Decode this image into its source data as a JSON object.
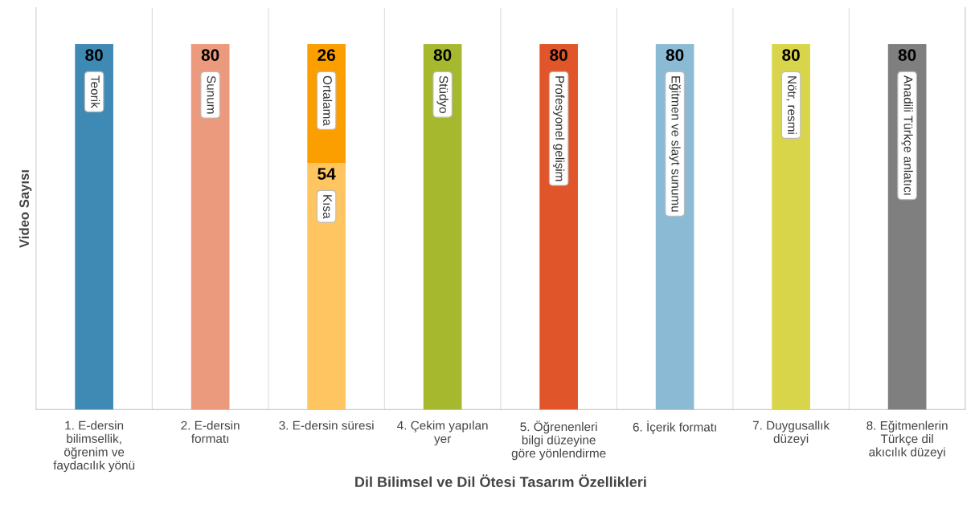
{
  "chart_data": {
    "type": "bar",
    "stacked": true,
    "data_labels": true,
    "grid": "x",
    "xlabel": "Dil Bilimsel ve Dil Ötesi Tasarım Özellikleri",
    "ylabel": "Video Sayısı",
    "categories": [
      "1. E-dersin bilimsellik, öğrenim ve faydacılık yönü",
      "2. E-dersin formatı",
      "3. E-dersin süresi",
      "4. Çekim yapılan yer",
      "5. Öğrenenleri bilgi düzeyine göre yönlendirme",
      "6. İçerik formatı",
      "7. Duygusallık düzeyi",
      "8. Eğitmenlerin Türkçe dil akıcılık düzeyi"
    ],
    "series": [
      {
        "name": "Teorik",
        "color": "#3f8ab5",
        "values": [
          80,
          null,
          null,
          null,
          null,
          null,
          null,
          null
        ]
      },
      {
        "name": "Sunum",
        "color": "#ec9a7e",
        "values": [
          null,
          80,
          null,
          null,
          null,
          null,
          null,
          null
        ]
      },
      {
        "name": "Kısa",
        "color": "#fec561",
        "values": [
          null,
          null,
          54,
          null,
          null,
          null,
          null,
          null
        ]
      },
      {
        "name": "Ortalama",
        "color": "#fb9e00",
        "values": [
          null,
          null,
          26,
          null,
          null,
          null,
          null,
          null
        ]
      },
      {
        "name": "Stüdyo",
        "color": "#a6b92e",
        "values": [
          null,
          null,
          null,
          80,
          null,
          null,
          null,
          null
        ]
      },
      {
        "name": "Profesyonel gelişim",
        "color": "#e05529",
        "values": [
          null,
          null,
          null,
          null,
          80,
          null,
          null,
          null
        ]
      },
      {
        "name": "Eğitmen ve slayt sunumu",
        "color": "#8bbad5",
        "values": [
          null,
          null,
          null,
          null,
          null,
          80,
          null,
          null
        ]
      },
      {
        "name": "Nötr, resmi",
        "color": "#d9d54a",
        "values": [
          null,
          null,
          null,
          null,
          null,
          null,
          80,
          null
        ]
      },
      {
        "name": "Anadili Türkçe anlatıcı",
        "color": "#7f7f7f",
        "values": [
          null,
          null,
          null,
          null,
          null,
          null,
          null,
          80
        ]
      }
    ]
  }
}
